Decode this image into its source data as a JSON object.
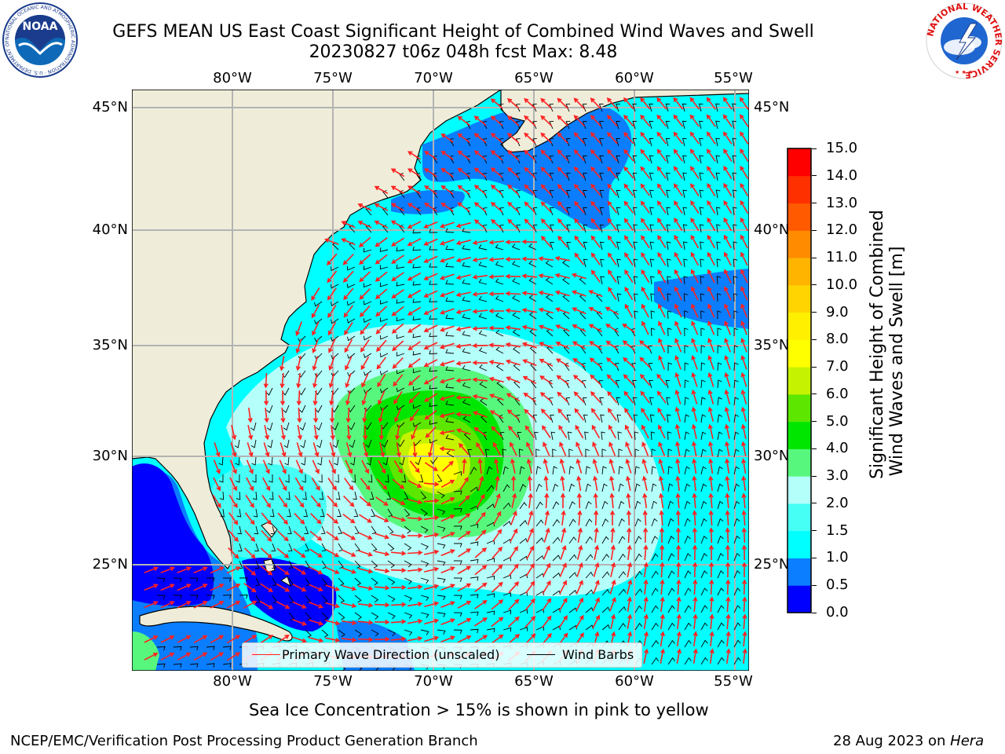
{
  "title": {
    "line1": "GEFS MEAN US East Coast Significant Height of Combined Wind Waves and Swell",
    "line2": "20230827 t06z 048h fcst   Max: 8.48"
  },
  "logos": {
    "noaa": {
      "text": "NOAA",
      "ring_text": "NATIONAL OCEANIC AND ATMOSPHERIC ADMINISTRATION · U.S. DEPARTMENT OF COMMERCE"
    },
    "nws": {
      "ring_text": "NATIONAL WEATHER SERVICE"
    }
  },
  "map": {
    "lon_labels": [
      "80°W",
      "75°W",
      "70°W",
      "65°W",
      "60°W",
      "55°W"
    ],
    "lat_labels_left": [
      "45°N",
      "40°N",
      "35°N",
      "30°N",
      "25°N"
    ],
    "lat_labels_right": [
      "45°N",
      "40°N",
      "35°N",
      "30°N",
      "25°N"
    ],
    "lon_range": [
      -85,
      -54.3
    ],
    "lat_range": [
      20.5,
      45.8
    ],
    "max_value": 8.48,
    "storm_center": {
      "lon": -69.5,
      "lat": 29.8
    },
    "colors": {
      "land": "#efedd9",
      "grid": "#b3b3b3",
      "wave_arrow": "#ff2020",
      "wind_barb": "#000000"
    }
  },
  "legend": {
    "wave": "Primary Wave Direction (unscaled)",
    "wind": "Wind Barbs"
  },
  "colorbar": {
    "title_line1": "Significant Height of Combined",
    "title_line2": "Wind Waves and Swell [m]",
    "levels": [
      "0.0",
      "0.5",
      "1.0",
      "1.5",
      "2.0",
      "3.0",
      "4.0",
      "5.0",
      "6.0",
      "7.0",
      "8.0",
      "9.0",
      "10.0",
      "11.0",
      "12.0",
      "13.0",
      "14.0",
      "15.0"
    ],
    "colors": [
      "#0000ff",
      "#0a7eff",
      "#00ffff",
      "#46fff5",
      "#b4fffa",
      "#56f77c",
      "#00e600",
      "#5ce600",
      "#c4f200",
      "#ffff00",
      "#fff000",
      "#ffd400",
      "#ffb400",
      "#ff8c00",
      "#ff5a00",
      "#ff3000",
      "#ff0000"
    ]
  },
  "footer": {
    "note": "Sea Ice Concentration > 15% is shown in pink to yellow",
    "left": "NCEP/EMC/Verification Post Processing Product Generation Branch",
    "date": "28 Aug 2023 on ",
    "machine": "Hera"
  }
}
